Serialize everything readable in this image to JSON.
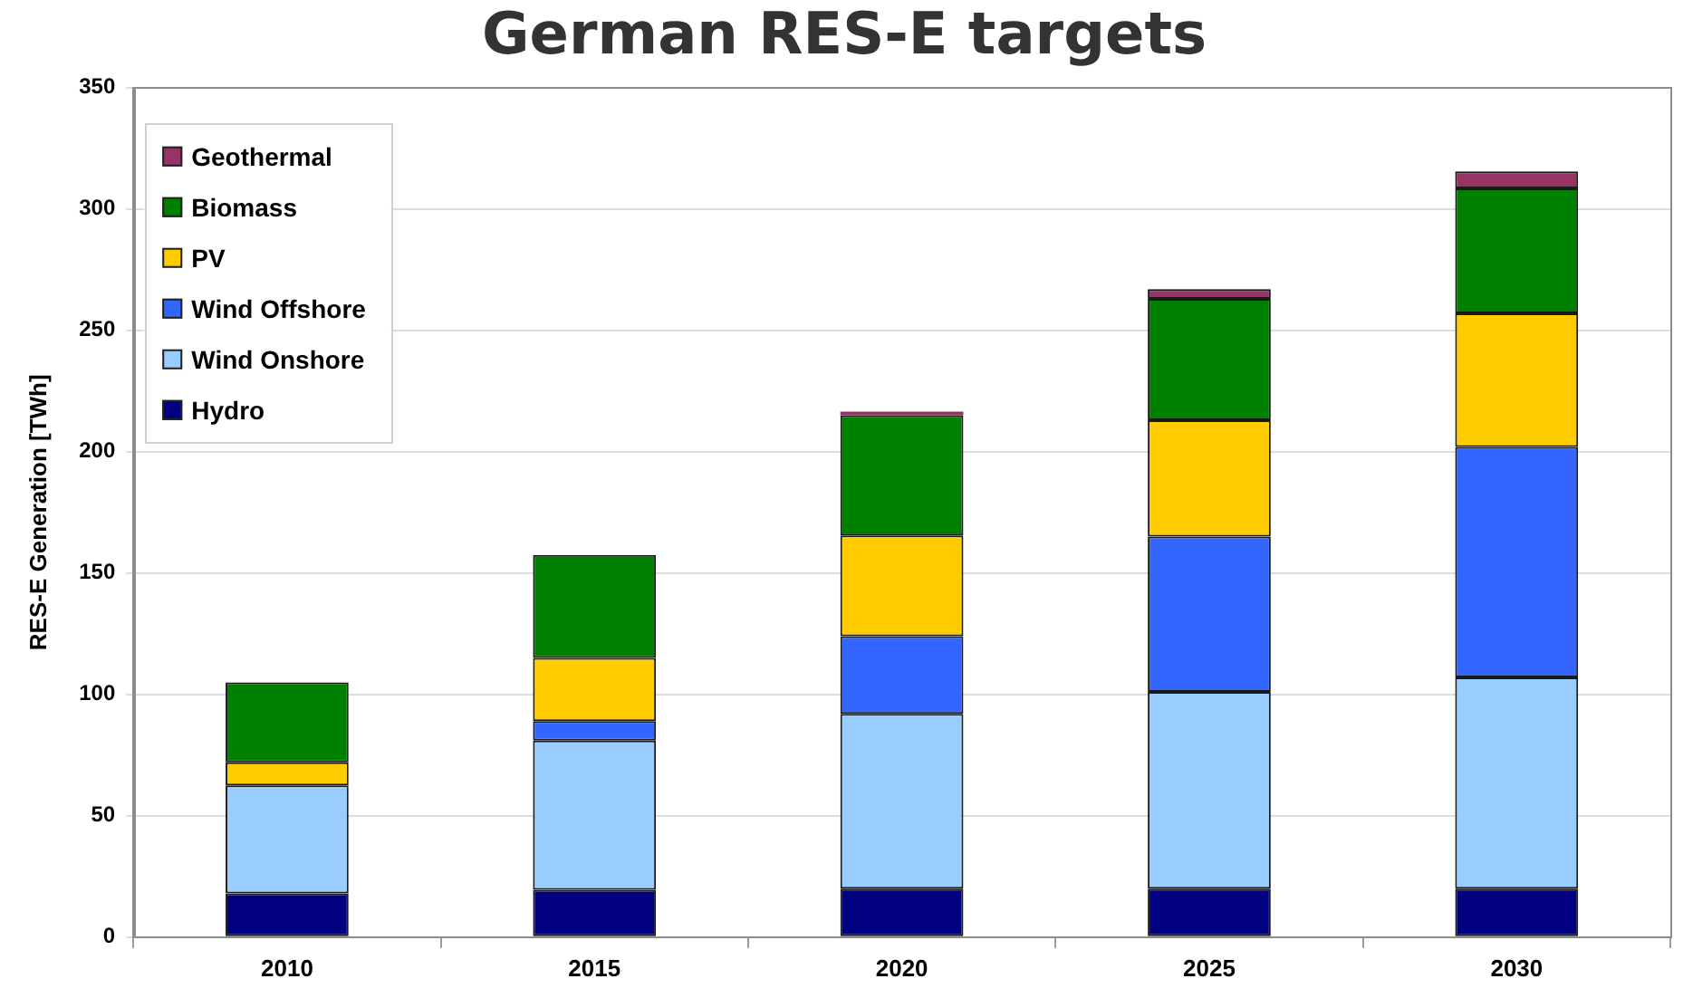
{
  "chart_data": {
    "type": "bar",
    "title": "German RES-E targets",
    "ylabel": "RES-E Generation [TWh]",
    "categories": [
      "2010",
      "2015",
      "2020",
      "2025",
      "2030"
    ],
    "series": [
      {
        "name": "Hydro",
        "color": "#000080",
        "values": [
          18,
          19.5,
          20,
          20,
          20
        ]
      },
      {
        "name": "Wind Onshore",
        "color": "#99ccff",
        "values": [
          44.5,
          61.5,
          72,
          81,
          87
        ]
      },
      {
        "name": "Wind Offshore",
        "color": "#3366ff",
        "values": [
          null,
          8,
          32,
          64,
          95
        ]
      },
      {
        "name": "PV",
        "color": "#ffcc00",
        "values": [
          9.5,
          26,
          41.5,
          48,
          55
        ]
      },
      {
        "name": "Biomass",
        "color": "#008000",
        "values": [
          33,
          42.5,
          49.5,
          50,
          51.5
        ]
      },
      {
        "name": "Geothermal",
        "color": "#993366",
        "values": [
          null,
          null,
          1.5,
          4,
          7
        ]
      }
    ],
    "stacked": true,
    "ylim": [
      0,
      350
    ],
    "yticks": [
      0,
      50,
      100,
      150,
      200,
      250,
      300,
      350
    ],
    "grid": "y",
    "legend": "top left"
  }
}
